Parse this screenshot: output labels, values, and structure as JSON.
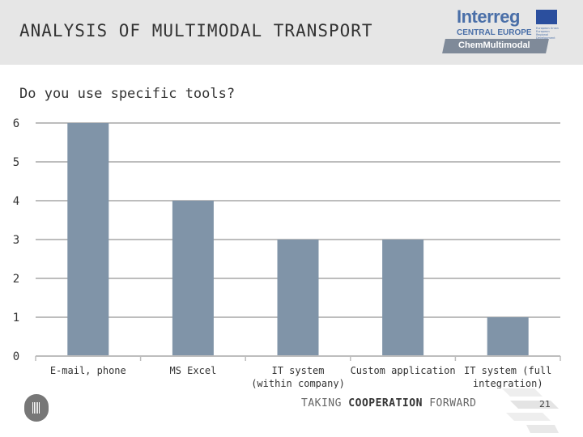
{
  "header": {
    "title": "ANALYSIS OF MULTIMODAL TRANSPORT",
    "logo": {
      "name": "Interreg",
      "region": "CENTRAL EUROPE",
      "eu_text": "European Union European Regional Development Fund",
      "project": "ChemMultimodal"
    }
  },
  "question": "Do you use specific tools?",
  "chart_data": {
    "type": "bar",
    "categories": [
      "E-mail, phone",
      "MS Excel",
      "IT system (within company)",
      "Custom application",
      "IT system (full integration)"
    ],
    "category_lines": [
      [
        "E-mail, phone"
      ],
      [
        "MS Excel"
      ],
      [
        "IT system",
        "(within company)"
      ],
      [
        "Custom application"
      ],
      [
        "IT system (full",
        "integration)"
      ]
    ],
    "values": [
      6,
      4,
      3,
      3,
      1
    ],
    "title": "",
    "xlabel": "",
    "ylabel": "",
    "ylim": [
      0,
      6
    ],
    "yticks": [
      0,
      1,
      2,
      3,
      4,
      5,
      6
    ],
    "grid": true,
    "legend": "none",
    "bar_color": "#8094a8"
  },
  "footer": {
    "prefix": "TAKING ",
    "bold": "COOPERATION",
    "suffix": " FORWARD",
    "page": "21"
  }
}
